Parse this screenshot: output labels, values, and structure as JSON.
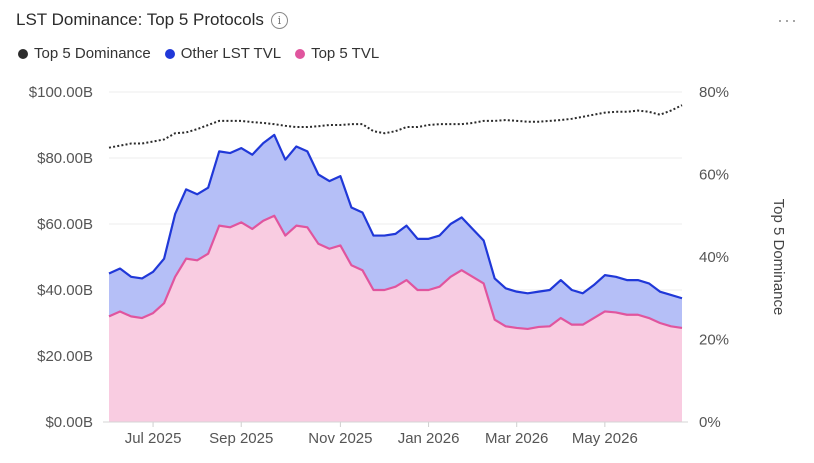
{
  "header": {
    "title": "LST Dominance: Top 5 Protocols",
    "info_icon": "info-icon",
    "more_icon": "more-horizontal-icon"
  },
  "legend": [
    {
      "label": "Top 5 Dominance",
      "color": "#2b2b2b"
    },
    {
      "label": "Other LST TVL",
      "color": "#2038d8"
    },
    {
      "label": "Top 5 TVL",
      "color": "#e0559e"
    }
  ],
  "chart_data": {
    "type": "area",
    "x_tick_labels": [
      "Jul 2025",
      "Sep 2025",
      "Nov 2025",
      "Jan 2026",
      "Mar 2026",
      "May 2026"
    ],
    "y_left_ticks": [
      "$0.00B",
      "$20.00B",
      "$40.00B",
      "$60.00B",
      "$80.00B",
      "$100.00B"
    ],
    "y_right_ticks": [
      "0%",
      "20%",
      "40%",
      "60%",
      "80%"
    ],
    "y_right_label": "Top 5 Dominance",
    "ylim_left": [
      0,
      100
    ],
    "ylim_right": [
      0,
      80
    ],
    "grid": "horizontal",
    "series": [
      {
        "name": "Top 5 TVL",
        "color": "#e0559e",
        "fill": "#f9cce1",
        "values": [
          32,
          33.5,
          32,
          31.5,
          33,
          36,
          44,
          49.5,
          49,
          51,
          59.5,
          59,
          60.5,
          58.5,
          61,
          62.5,
          56.5,
          59.5,
          59,
          54,
          52.5,
          53.5,
          47.5,
          46,
          40,
          40,
          41,
          43,
          40,
          40,
          41,
          44,
          46,
          44,
          42,
          31,
          29,
          28.5,
          28.2,
          28.8,
          29,
          31.5,
          29.5,
          29.5,
          31.5,
          33.5,
          33.2,
          32.5,
          32.5,
          31.5,
          30,
          29,
          28.5
        ]
      },
      {
        "name": "Other LST TVL",
        "color": "#2038d8",
        "fill": "#b5bff7",
        "values": [
          45,
          46.5,
          44,
          43.5,
          45.5,
          49.5,
          63,
          70.5,
          69,
          71,
          82,
          81.5,
          83,
          81,
          84.5,
          87,
          79.5,
          83.5,
          82,
          75,
          73,
          74.5,
          65,
          63.5,
          56.5,
          56.5,
          57,
          59.5,
          55.5,
          55.5,
          56.5,
          60,
          62,
          58.5,
          55,
          43.5,
          40.5,
          39.5,
          39,
          39.5,
          40,
          43,
          40,
          39,
          41.5,
          44.5,
          44,
          43,
          43,
          42,
          39.5,
          38.5,
          37.5
        ]
      },
      {
        "name": "Top 5 Dominance",
        "color": "#2b2b2b",
        "style": "dotted",
        "values": [
          66.5,
          67,
          67.5,
          67.5,
          68,
          68.5,
          70,
          70.2,
          71,
          72,
          73,
          73,
          73,
          72.7,
          72.5,
          72.2,
          71.8,
          71.5,
          71.5,
          71.7,
          72,
          72,
          72.2,
          72.2,
          70.5,
          70,
          70.5,
          71.5,
          71.5,
          72,
          72.2,
          72.2,
          72.2,
          72.5,
          73,
          73,
          73.2,
          73,
          72.8,
          72.8,
          73,
          73.2,
          73.5,
          74,
          74.5,
          75,
          75.2,
          75.2,
          75.5,
          75.2,
          74.5,
          75.5,
          76.8
        ]
      }
    ]
  }
}
